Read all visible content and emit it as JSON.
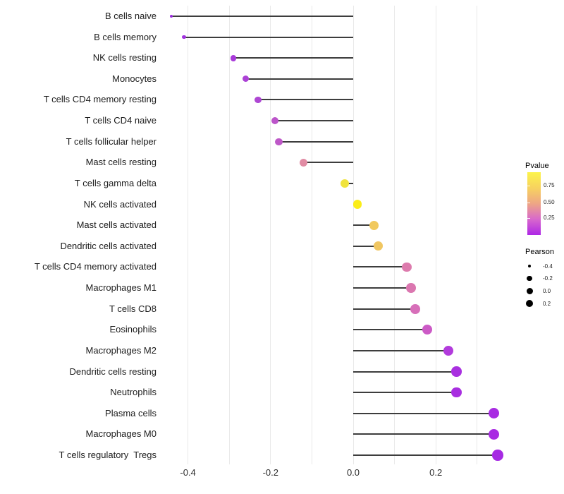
{
  "chart_data": {
    "type": "lollipop",
    "title": "",
    "xlabel": "",
    "ylabel": "",
    "xlim": [
      -0.45,
      0.36
    ],
    "grid": "vertical-only",
    "x_ticks": [
      {
        "value": -0.4,
        "label": "-0.4"
      },
      {
        "value": -0.2,
        "label": "-0.2"
      },
      {
        "value": 0.0,
        "label": "0.0"
      },
      {
        "value": 0.2,
        "label": "0.2"
      }
    ],
    "gridline_values": [
      -0.4,
      -0.3,
      -0.2,
      -0.1,
      0.0,
      0.1,
      0.2,
      0.3
    ],
    "rows": [
      {
        "label": "B cells naive",
        "pearson": -0.44,
        "color": "#9A2BDC"
      },
      {
        "label": "B cells memory",
        "pearson": -0.41,
        "color": "#A133DE"
      },
      {
        "label": "NK cells resting",
        "pearson": -0.29,
        "color": "#A83AD9"
      },
      {
        "label": "Monocytes",
        "pearson": -0.26,
        "color": "#AC42D6"
      },
      {
        "label": "T cells CD4 memory resting",
        "pearson": -0.23,
        "color": "#AE47D3"
      },
      {
        "label": "T cells CD4 naive",
        "pearson": -0.19,
        "color": "#BC55CA"
      },
      {
        "label": "T cells follicular helper",
        "pearson": -0.18,
        "color": "#BE58C8"
      },
      {
        "label": "Mast cells resting",
        "pearson": -0.12,
        "color": "#E18CA4"
      },
      {
        "label": "T cells gamma delta",
        "pearson": -0.02,
        "color": "#F0E33C"
      },
      {
        "label": "NK cells activated",
        "pearson": 0.01,
        "color": "#FBED18"
      },
      {
        "label": "Mast cells activated",
        "pearson": 0.05,
        "color": "#F1C95E"
      },
      {
        "label": "Dendritic cells activated",
        "pearson": 0.06,
        "color": "#F0C661"
      },
      {
        "label": "T cells CD4 memory activated",
        "pearson": 0.13,
        "color": "#DD7BAD"
      },
      {
        "label": "Macrophages M1",
        "pearson": 0.14,
        "color": "#DB77B0"
      },
      {
        "label": "T cells CD8",
        "pearson": 0.15,
        "color": "#D76FB9"
      },
      {
        "label": "Eosinophils",
        "pearson": 0.18,
        "color": "#CC5AC6"
      },
      {
        "label": "Macrophages M2",
        "pearson": 0.23,
        "color": "#B23BDC"
      },
      {
        "label": "Dendritic cells resting",
        "pearson": 0.25,
        "color": "#A930E0"
      },
      {
        "label": "Neutrophils",
        "pearson": 0.25,
        "color": "#A82FE0"
      },
      {
        "label": "Plasma cells",
        "pearson": 0.34,
        "color": "#A82BE2"
      },
      {
        "label": "Macrophages M0",
        "pearson": 0.34,
        "color": "#A82BE2"
      },
      {
        "label": "T cells regulatory  Tregs",
        "pearson": 0.35,
        "color": "#A62AE3"
      }
    ],
    "stem_color": "#3d3d3d",
    "grid_color": "#e9e9e9",
    "legend_position": "right",
    "legend_pvalue": {
      "title": "Pvalue",
      "ticks": [
        {
          "label": "0.75",
          "frac_from_top": 0.213
        },
        {
          "label": "0.50",
          "frac_from_top": 0.483
        },
        {
          "label": "0.25",
          "frac_from_top": 0.725
        }
      ],
      "gradient_top_to_bottom": [
        "#FCF44B",
        "#F7D25F",
        "#EEA685",
        "#D868CC",
        "#AE27E6"
      ]
    },
    "legend_pearson": {
      "title": "Pearson",
      "dot_color": "#000000",
      "entries": [
        {
          "label": "-0.4",
          "size": 4
        },
        {
          "label": "-0.2",
          "size": 7.5
        },
        {
          "label": "0.0",
          "size": 9
        },
        {
          "label": "0.2",
          "size": 10
        }
      ]
    }
  }
}
